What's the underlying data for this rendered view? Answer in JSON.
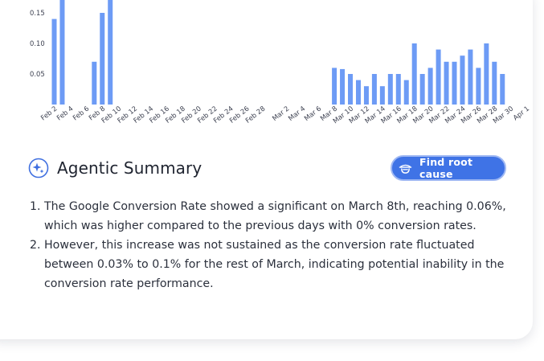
{
  "chart_data": {
    "type": "bar",
    "ylabel": "",
    "xlabel": "",
    "yticks": [
      "0.05",
      "0.10",
      "0.15"
    ],
    "ylim": [
      0,
      0.173
    ],
    "bar_color": "#6d9bf5",
    "x_tick_labels": [
      "Feb 2",
      "Feb 4",
      "Feb 6",
      "Feb 8",
      "Feb 10",
      "Feb 12",
      "Feb 14",
      "Feb 16",
      "Feb 18",
      "Feb 20",
      "Feb 22",
      "Feb 24",
      "Feb 26",
      "Feb 28",
      "Mar 2",
      "Mar 4",
      "Mar 6",
      "Mar 8",
      "Mar 10",
      "Mar 12",
      "Mar 14",
      "Mar 16",
      "Mar 18",
      "Mar 20",
      "Mar 22",
      "Mar 24",
      "Mar 26",
      "Mar 28",
      "Mar 30",
      "Apr 1"
    ],
    "bars": [
      {
        "date": "Feb 2",
        "value": 0.14
      },
      {
        "date": "Feb 3",
        "value": 0.18
      },
      {
        "date": "Feb 7",
        "value": 0.07
      },
      {
        "date": "Feb 8",
        "value": 0.15
      },
      {
        "date": "Feb 9",
        "value": 0.18
      },
      {
        "date": "Mar 8",
        "value": 0.06
      },
      {
        "date": "Mar 9",
        "value": 0.058
      },
      {
        "date": "Mar 10",
        "value": 0.05
      },
      {
        "date": "Mar 11",
        "value": 0.04
      },
      {
        "date": "Mar 12",
        "value": 0.03
      },
      {
        "date": "Mar 13",
        "value": 0.05
      },
      {
        "date": "Mar 14",
        "value": 0.03
      },
      {
        "date": "Mar 15",
        "value": 0.05
      },
      {
        "date": "Mar 16",
        "value": 0.05
      },
      {
        "date": "Mar 17",
        "value": 0.04
      },
      {
        "date": "Mar 18",
        "value": 0.1
      },
      {
        "date": "Mar 19",
        "value": 0.05
      },
      {
        "date": "Mar 20",
        "value": 0.06
      },
      {
        "date": "Mar 21",
        "value": 0.09
      },
      {
        "date": "Mar 22",
        "value": 0.07
      },
      {
        "date": "Mar 23",
        "value": 0.07
      },
      {
        "date": "Mar 24",
        "value": 0.08
      },
      {
        "date": "Mar 25",
        "value": 0.09
      },
      {
        "date": "Mar 26",
        "value": 0.06
      },
      {
        "date": "Mar 27",
        "value": 0.1
      },
      {
        "date": "Mar 28",
        "value": 0.07
      },
      {
        "date": "Mar 29",
        "value": 0.05
      }
    ]
  },
  "summary": {
    "title": "Agentic Summary",
    "icon": "sparkle-icon",
    "root_cause_button": {
      "label": "Find root cause",
      "icon": "detective-icon",
      "color": "#3f73e6"
    },
    "items": [
      "The Google Conversion Rate showed a significant on March 8th, reaching 0.06%, which was higher compared to the previous days with 0% conversion rates.",
      "However, this increase was not sustained as the conversion rate fluctuated between 0.03% to 0.1% for the rest of March, indicating potential inability in the conversion rate performance."
    ]
  }
}
